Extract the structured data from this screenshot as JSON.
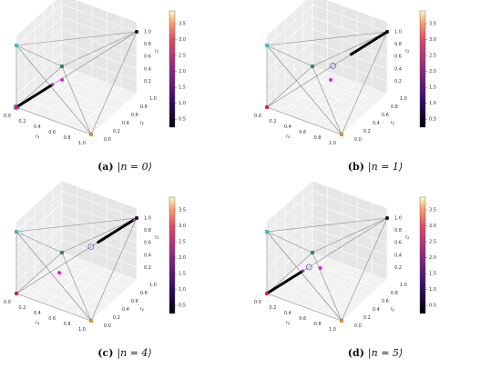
{
  "figure": {
    "axes": {
      "xlabel": [
        "r",
        "x"
      ],
      "ylabel": [
        "r",
        "y"
      ],
      "zlabel": [
        "r",
        "z"
      ],
      "xticks": [
        {
          "value": 0,
          "label": "0.0"
        },
        {
          "value": 0.2,
          "label": "0.2"
        },
        {
          "value": 0.4,
          "label": "0.4"
        },
        {
          "value": 0.6,
          "label": "0.6"
        },
        {
          "value": 0.8,
          "label": "0.8"
        },
        {
          "value": 1,
          "label": "1.0"
        }
      ],
      "yticks": [
        {
          "value": 0,
          "label": "0.0"
        },
        {
          "value": 0.2,
          "label": "0.2"
        },
        {
          "value": 0.4,
          "label": "0.4"
        },
        {
          "value": 0.6,
          "label": "0.6"
        },
        {
          "value": 0.8,
          "label": "0.8"
        },
        {
          "value": 1,
          "label": "1.0"
        }
      ],
      "zticks": [
        {
          "value": 0.2,
          "label": "0.2"
        },
        {
          "value": 0.4,
          "label": "0.4"
        },
        {
          "value": 0.6,
          "label": "0.6"
        },
        {
          "value": 0.8,
          "label": "0.8"
        },
        {
          "value": 1,
          "label": "1.0"
        }
      ],
      "vertices": [
        {
          "color": "#e8202a",
          "pos": [
            0,
            0,
            0
          ]
        },
        {
          "color": "#f0a020",
          "pos": [
            1,
            0,
            0
          ]
        },
        {
          "color": "#2a9a3a",
          "pos": [
            0,
            1,
            0
          ]
        },
        {
          "color": "#30d8d8",
          "pos": [
            0,
            0,
            1
          ]
        },
        {
          "color": "#111111",
          "pos": [
            1,
            1,
            1
          ]
        }
      ],
      "colorbar": {
        "lim": [
          0.25,
          3.9
        ],
        "ticks": [
          {
            "value": 0.5,
            "label": "0.5"
          },
          {
            "value": 1,
            "label": "1.0"
          },
          {
            "value": 1.5,
            "label": "1.5"
          },
          {
            "value": 2,
            "label": "2.0"
          },
          {
            "value": 2.5,
            "label": "2.5"
          },
          {
            "value": 3,
            "label": "3.0"
          },
          {
            "value": 3.5,
            "label": "3.5"
          }
        ]
      }
    },
    "panels": [
      {
        "tag": "(a)",
        "caption": "|n = 0⟩",
        "trajectory": [
          [
            0,
            0,
            0
          ],
          [
            0.3,
            0.3,
            0.3
          ]
        ],
        "magenta": [
          0.38,
          0.38,
          0.36
        ],
        "hollow": [
          0,
          0,
          0
        ]
      },
      {
        "tag": "(b)",
        "caption": "|n = 1⟩",
        "trajectory": [
          [
            0.7,
            0.7,
            0.7
          ],
          [
            1,
            1,
            1
          ]
        ],
        "magenta": [
          0.5,
          0.58,
          0.28
        ],
        "hollow": [
          0.55,
          0.55,
          0.55
        ]
      },
      {
        "tag": "(c)",
        "caption": "|n = 4⟩",
        "trajectory": [
          [
            0.68,
            0.68,
            0.68
          ],
          [
            0.98,
            0.98,
            0.98
          ]
        ],
        "magenta": [
          0.3,
          0.45,
          0.17
        ],
        "hollow": [
          0.62,
          0.62,
          0.62
        ]
      },
      {
        "tag": "(d)",
        "caption": "|n = 5⟩",
        "trajectory": [
          [
            0,
            0,
            0
          ],
          [
            0.3,
            0.3,
            0.3
          ]
        ],
        "magenta": [
          0.5,
          0.35,
          0.4
        ],
        "hollow": [
          0.35,
          0.35,
          0.35
        ]
      }
    ]
  }
}
